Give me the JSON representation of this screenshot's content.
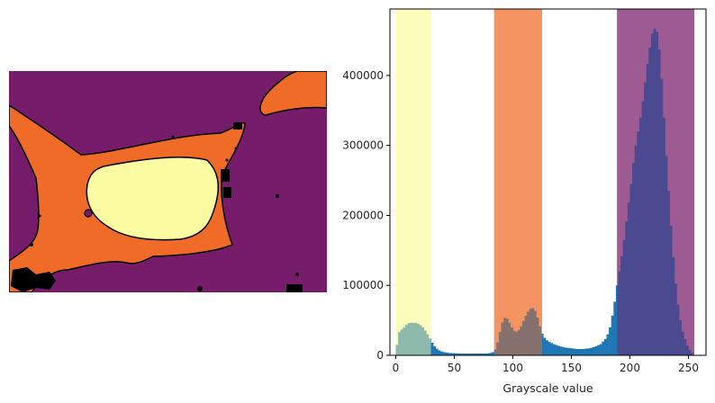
{
  "colors": {
    "segment_background": "#771c6a",
    "segment_mid": "#ef6b27",
    "segment_bright": "#fbfca1",
    "contour": "#000000",
    "histogram_bar": "#1f77b4",
    "band_low": "#fbfca1",
    "band_mid": "#ef6b27",
    "band_high": "#771c6a"
  },
  "chart_data": {
    "type": "bar",
    "title": "",
    "xlabel": "Grayscale value",
    "ylabel": "",
    "xlim": [
      -5,
      265
    ],
    "ylim": [
      0,
      495000
    ],
    "grid": false,
    "xticks": [
      0,
      50,
      100,
      150,
      200,
      250
    ],
    "xtick_labels": [
      "0",
      "50",
      "100",
      "150",
      "200",
      "250"
    ],
    "yticks": [
      0,
      100000,
      200000,
      300000,
      400000
    ],
    "ytick_labels": [
      "0",
      "100000",
      "200000",
      "300000",
      "400000"
    ],
    "histogram": {
      "bin_width": 2,
      "points": [
        [
          0,
          0
        ],
        [
          2,
          30000
        ],
        [
          4,
          36000
        ],
        [
          6,
          38000
        ],
        [
          8,
          42000
        ],
        [
          10,
          45000
        ],
        [
          12,
          47000
        ],
        [
          14,
          46000
        ],
        [
          16,
          47000
        ],
        [
          18,
          46000
        ],
        [
          20,
          44000
        ],
        [
          22,
          42000
        ],
        [
          24,
          38000
        ],
        [
          26,
          33000
        ],
        [
          28,
          27000
        ],
        [
          30,
          21000
        ],
        [
          32,
          15000
        ],
        [
          34,
          11000
        ],
        [
          36,
          8000
        ],
        [
          38,
          6000
        ],
        [
          40,
          5000
        ],
        [
          45,
          3500
        ],
        [
          50,
          3000
        ],
        [
          55,
          2500
        ],
        [
          60,
          2500
        ],
        [
          65,
          2500
        ],
        [
          70,
          2500
        ],
        [
          75,
          2500
        ],
        [
          80,
          3000
        ],
        [
          84,
          5000
        ],
        [
          86,
          12000
        ],
        [
          88,
          25000
        ],
        [
          90,
          42000
        ],
        [
          92,
          52000
        ],
        [
          94,
          55000
        ],
        [
          96,
          50000
        ],
        [
          98,
          43000
        ],
        [
          100,
          37000
        ],
        [
          102,
          33000
        ],
        [
          104,
          34000
        ],
        [
          106,
          38000
        ],
        [
          108,
          45000
        ],
        [
          110,
          53000
        ],
        [
          112,
          60000
        ],
        [
          114,
          65000
        ],
        [
          116,
          68000
        ],
        [
          118,
          67000
        ],
        [
          120,
          60000
        ],
        [
          122,
          48000
        ],
        [
          124,
          35000
        ],
        [
          126,
          27000
        ],
        [
          128,
          23000
        ],
        [
          130,
          20000
        ],
        [
          135,
          16000
        ],
        [
          140,
          13000
        ],
        [
          145,
          11000
        ],
        [
          150,
          10000
        ],
        [
          155,
          9000
        ],
        [
          160,
          9000
        ],
        [
          165,
          10000
        ],
        [
          170,
          12000
        ],
        [
          175,
          16000
        ],
        [
          180,
          25000
        ],
        [
          183,
          40000
        ],
        [
          186,
          65000
        ],
        [
          189,
          100000
        ],
        [
          192,
          130000
        ],
        [
          195,
          165000
        ],
        [
          198,
          205000
        ],
        [
          201,
          245000
        ],
        [
          204,
          290000
        ],
        [
          207,
          320000
        ],
        [
          210,
          350000
        ],
        [
          213,
          390000
        ],
        [
          216,
          430000
        ],
        [
          219,
          460000
        ],
        [
          222,
          470000
        ],
        [
          224,
          455000
        ],
        [
          226,
          420000
        ],
        [
          228,
          370000
        ],
        [
          230,
          310000
        ],
        [
          232,
          260000
        ],
        [
          234,
          210000
        ],
        [
          236,
          160000
        ],
        [
          238,
          120000
        ],
        [
          240,
          85000
        ],
        [
          242,
          60000
        ],
        [
          244,
          40000
        ],
        [
          246,
          28000
        ],
        [
          248,
          18000
        ],
        [
          250,
          10000
        ],
        [
          252,
          5000
        ],
        [
          254,
          2000
        ]
      ]
    },
    "bands": [
      {
        "name": "low",
        "start": 0,
        "end": 30,
        "color": "#fbfca1"
      },
      {
        "name": "mid",
        "start": 84,
        "end": 125,
        "color": "#ef6b27"
      },
      {
        "name": "high",
        "start": 189,
        "end": 255,
        "color": "#771c6a"
      }
    ]
  }
}
